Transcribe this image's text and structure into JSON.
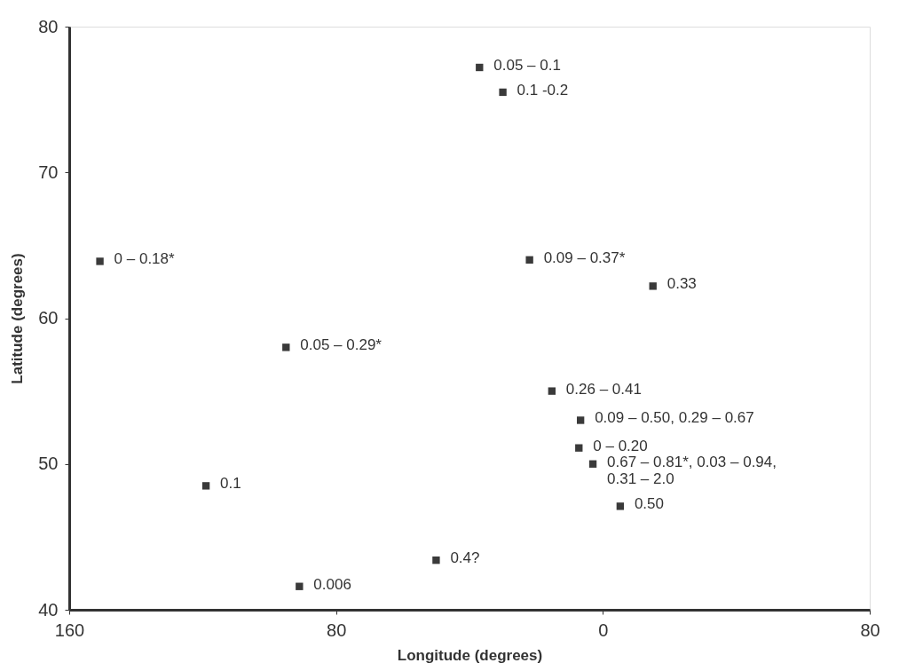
{
  "chart_data": {
    "type": "scatter",
    "xlabel": "Longitude (degrees)",
    "ylabel": "Latitude (degrees)",
    "x": [
      -37,
      -30,
      -150.8,
      -22,
      15,
      -95,
      -15.3,
      -6.7,
      -7.2,
      -3,
      5.2,
      -119,
      -50,
      -91
    ],
    "values": [
      77.2,
      75.5,
      63.9,
      64,
      62.2,
      58,
      55,
      53,
      51.1,
      50,
      47.1,
      48.5,
      43.4,
      41.6
    ],
    "color": "#3a3a3a",
    "marker": "square",
    "grid": false,
    "xlim": [
      -160,
      80
    ],
    "xticks": [
      {
        "value": -160,
        "label": "160"
      },
      {
        "value": -80,
        "label": "80"
      },
      0,
      80
    ],
    "ylim": [
      40,
      80
    ],
    "yticks": [
      40,
      50,
      60,
      70,
      80
    ],
    "annotations": [
      {
        "text": "0.05 – 0.1",
        "x": -37,
        "y": 77.2
      },
      {
        "text": "0.1 -0.2",
        "x": -30,
        "y": 75.5
      },
      {
        "text": "0 – 0.18*",
        "x": -150.8,
        "y": 63.9
      },
      {
        "text": "0.09 – 0.37*",
        "x": -22,
        "y": 64
      },
      {
        "text": "0.33",
        "x": 15,
        "y": 62.2
      },
      {
        "text": "0.05 – 0.29*",
        "x": -95,
        "y": 58
      },
      {
        "text": "0.26 – 0.41",
        "x": -15.3,
        "y": 55
      },
      {
        "text": "0.09 – 0.50, 0.29 – 0.67",
        "x": -6.7,
        "y": 53
      },
      {
        "text": "0 – 0.20",
        "x": -7.2,
        "y": 51.1
      },
      {
        "text": "0.67 – 0.81*, 0.03 – 0.94, 0.31 – 2.0",
        "x": -3,
        "y": 50
      },
      {
        "text": "0.50",
        "x": 5.2,
        "y": 47.1
      },
      {
        "text": "0.1",
        "x": -119,
        "y": 48.5
      },
      {
        "text": "0.4?",
        "x": -50,
        "y": 43.4
      },
      {
        "text": "0.006",
        "x": -91,
        "y": 41.6
      }
    ]
  }
}
